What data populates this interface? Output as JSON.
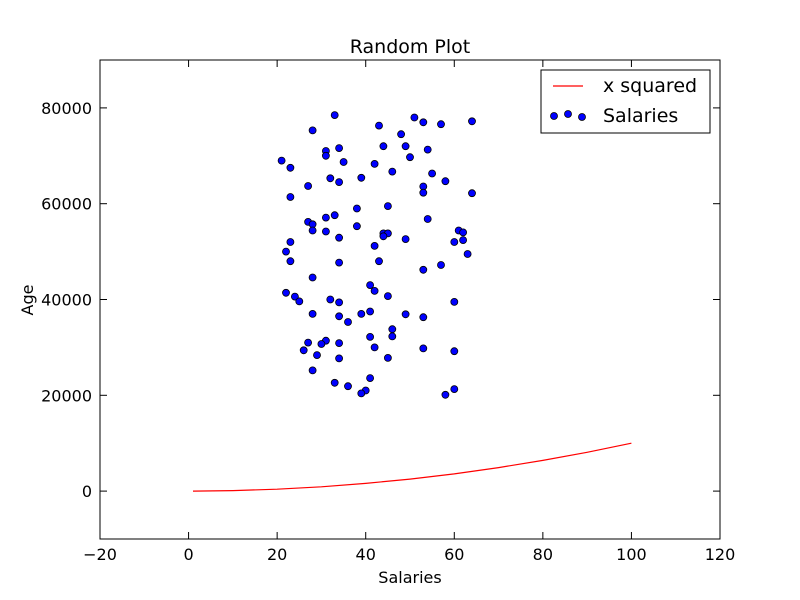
{
  "chart_data": {
    "type": "scatter",
    "title": "Random Plot",
    "xlabel": "Salaries",
    "ylabel": "Age",
    "xlim": [
      -20,
      120
    ],
    "ylim": [
      -10000,
      90000
    ],
    "xticks": [
      -20,
      0,
      20,
      40,
      60,
      80,
      100,
      120
    ],
    "yticks": [
      0,
      20000,
      40000,
      60000,
      80000
    ],
    "xtick_labels": [
      "−20",
      "0",
      "20",
      "40",
      "60",
      "80",
      "100",
      "120"
    ],
    "ytick_labels": [
      "0",
      "20000",
      "40000",
      "60000",
      "80000"
    ],
    "grid": false,
    "legend": {
      "placement": "top-right"
    },
    "series": [
      {
        "name": "x squared",
        "kind": "line",
        "color": "#ff0000",
        "x": [
          1,
          10,
          20,
          30,
          40,
          50,
          60,
          70,
          80,
          90,
          100
        ],
        "y": [
          1,
          100,
          400,
          900,
          1600,
          2500,
          3600,
          4900,
          6400,
          8100,
          10000
        ]
      },
      {
        "name": "Salaries",
        "kind": "scatter",
        "color": "#0000ff",
        "edgecolor": "#000000",
        "points": [
          [
            33,
            78500
          ],
          [
            51,
            78000
          ],
          [
            53,
            77000
          ],
          [
            57,
            76600
          ],
          [
            64,
            77200
          ],
          [
            43,
            76300
          ],
          [
            28,
            75300
          ],
          [
            48,
            74500
          ],
          [
            44,
            72000
          ],
          [
            49,
            72000
          ],
          [
            34,
            71600
          ],
          [
            31,
            71000
          ],
          [
            54,
            71300
          ],
          [
            31,
            70000
          ],
          [
            50,
            69700
          ],
          [
            21,
            69000
          ],
          [
            35,
            68700
          ],
          [
            42,
            68300
          ],
          [
            23,
            67500
          ],
          [
            46,
            66700
          ],
          [
            55,
            66300
          ],
          [
            32,
            65300
          ],
          [
            39,
            65400
          ],
          [
            34,
            64500
          ],
          [
            58,
            64700
          ],
          [
            27,
            63700
          ],
          [
            53,
            63600
          ],
          [
            53,
            62300
          ],
          [
            64,
            62200
          ],
          [
            23,
            61400
          ],
          [
            45,
            59500
          ],
          [
            38,
            59000
          ],
          [
            33,
            57600
          ],
          [
            31,
            57100
          ],
          [
            54,
            56800
          ],
          [
            27,
            56200
          ],
          [
            28,
            55700
          ],
          [
            38,
            55300
          ],
          [
            28,
            54400
          ],
          [
            31,
            54200
          ],
          [
            61,
            54400
          ],
          [
            62,
            54000
          ],
          [
            44,
            53800
          ],
          [
            45,
            53800
          ],
          [
            44,
            53200
          ],
          [
            34,
            52900
          ],
          [
            49,
            52600
          ],
          [
            62,
            52400
          ],
          [
            23,
            52000
          ],
          [
            60,
            52000
          ],
          [
            42,
            51200
          ],
          [
            22,
            50000
          ],
          [
            63,
            49500
          ],
          [
            23,
            48000
          ],
          [
            34,
            47700
          ],
          [
            43,
            48000
          ],
          [
            57,
            47200
          ],
          [
            53,
            46200
          ],
          [
            28,
            44600
          ],
          [
            41,
            43000
          ],
          [
            42,
            41800
          ],
          [
            22,
            41400
          ],
          [
            24,
            40600
          ],
          [
            45,
            40700
          ],
          [
            25,
            39600
          ],
          [
            32,
            40000
          ],
          [
            34,
            39400
          ],
          [
            60,
            39500
          ],
          [
            39,
            37000
          ],
          [
            41,
            37500
          ],
          [
            49,
            36900
          ],
          [
            28,
            37000
          ],
          [
            34,
            36500
          ],
          [
            53,
            36300
          ],
          [
            36,
            35300
          ],
          [
            46,
            33800
          ],
          [
            41,
            32200
          ],
          [
            46,
            32300
          ],
          [
            31,
            31400
          ],
          [
            27,
            31000
          ],
          [
            30,
            30700
          ],
          [
            34,
            30900
          ],
          [
            42,
            30000
          ],
          [
            53,
            29800
          ],
          [
            26,
            29400
          ],
          [
            60,
            29200
          ],
          [
            29,
            28400
          ],
          [
            34,
            27700
          ],
          [
            45,
            27800
          ],
          [
            28,
            25200
          ],
          [
            41,
            23600
          ],
          [
            33,
            22600
          ],
          [
            36,
            21900
          ],
          [
            40,
            21000
          ],
          [
            60,
            21300
          ],
          [
            39,
            20400
          ],
          [
            58,
            20100
          ]
        ]
      }
    ]
  }
}
